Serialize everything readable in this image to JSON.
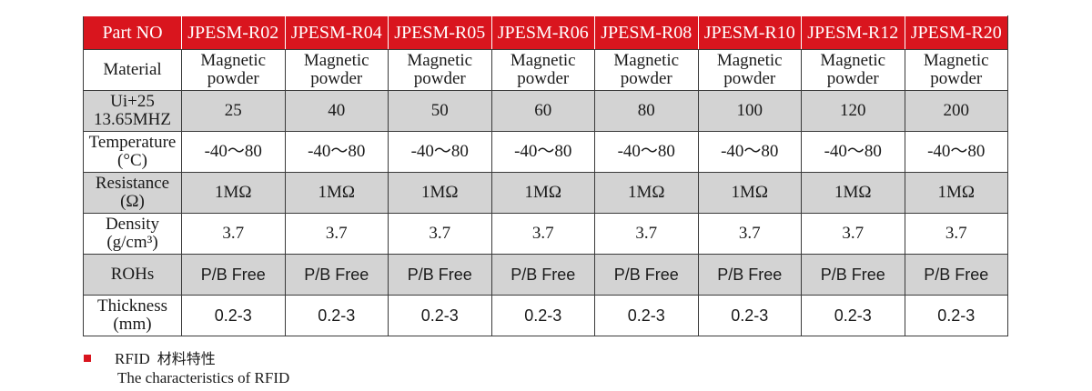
{
  "table": {
    "header": [
      "Part NO",
      "JPESM-R02",
      "JPESM-R04",
      "JPESM-R05",
      "JPESM-R06",
      "JPESM-R08",
      "JPESM-R10",
      "JPESM-R12",
      "JPESM-R20"
    ],
    "rows": [
      {
        "label": [
          "Material"
        ],
        "shade": "white",
        "font": "serif",
        "values": [
          [
            "Magnetic",
            "powder"
          ],
          [
            "Magnetic",
            "powder"
          ],
          [
            "Magnetic",
            "powder"
          ],
          [
            "Magnetic",
            "powder"
          ],
          [
            "Magnetic",
            "powder"
          ],
          [
            "Magnetic",
            "powder"
          ],
          [
            "Magnetic",
            "powder"
          ],
          [
            "Magnetic",
            "powder"
          ]
        ]
      },
      {
        "label": [
          "Ui+25",
          "13.65MHZ"
        ],
        "shade": "gray",
        "font": "serif",
        "values": [
          [
            "25"
          ],
          [
            "40"
          ],
          [
            "50"
          ],
          [
            "60"
          ],
          [
            "80"
          ],
          [
            "100"
          ],
          [
            "120"
          ],
          [
            "200"
          ]
        ]
      },
      {
        "label": [
          "Temperature",
          "(°C)"
        ],
        "shade": "white",
        "font": "serif",
        "values": [
          [
            "-40～80"
          ],
          [
            "-40～80"
          ],
          [
            "-40～80"
          ],
          [
            "-40～80"
          ],
          [
            "-40～80"
          ],
          [
            "-40～80"
          ],
          [
            "-40～80"
          ],
          [
            "-40～80"
          ]
        ]
      },
      {
        "label": [
          "Resistance",
          "(Ω)"
        ],
        "shade": "gray",
        "font": "serif",
        "values": [
          [
            "1MΩ"
          ],
          [
            "1MΩ"
          ],
          [
            "1MΩ"
          ],
          [
            "1MΩ"
          ],
          [
            "1MΩ"
          ],
          [
            "1MΩ"
          ],
          [
            "1MΩ"
          ],
          [
            "1MΩ"
          ]
        ]
      },
      {
        "label": [
          "Density",
          "(g/cm³)"
        ],
        "shade": "white",
        "font": "serif",
        "values": [
          [
            "3.7"
          ],
          [
            "3.7"
          ],
          [
            "3.7"
          ],
          [
            "3.7"
          ],
          [
            "3.7"
          ],
          [
            "3.7"
          ],
          [
            "3.7"
          ],
          [
            "3.7"
          ]
        ]
      },
      {
        "label": [
          "ROHs"
        ],
        "shade": "gray",
        "font": "sans",
        "values": [
          [
            "P/B Free"
          ],
          [
            "P/B Free"
          ],
          [
            "P/B Free"
          ],
          [
            "P/B Free"
          ],
          [
            "P/B Free"
          ],
          [
            "P/B Free"
          ],
          [
            "P/B Free"
          ],
          [
            "P/B Free"
          ]
        ]
      },
      {
        "label": [
          "Thickness",
          "(mm)"
        ],
        "shade": "white",
        "font": "sans",
        "values": [
          [
            "0.2-3"
          ],
          [
            "0.2-3"
          ],
          [
            "0.2-3"
          ],
          [
            "0.2-3"
          ],
          [
            "0.2-3"
          ],
          [
            "0.2-3"
          ],
          [
            "0.2-3"
          ],
          [
            "0.2-3"
          ]
        ]
      }
    ]
  },
  "footer": {
    "title_en": "RFID",
    "title_cn": "材料特性",
    "subtitle": "The characteristics of RFID"
  },
  "colors": {
    "header_bg": "#d9151e",
    "gray_row": "#d3d3d3",
    "bullet": "#d9151e"
  }
}
